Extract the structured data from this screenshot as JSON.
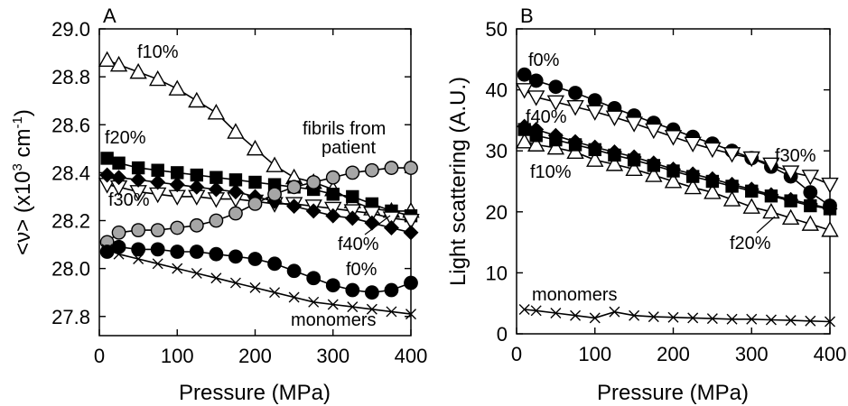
{
  "chart_data": [
    {
      "panel": "A",
      "type": "line",
      "xlabel": "Pressure (MPa)",
      "ylabel_parts": {
        "pre": "<ν> (x10",
        "sup1": "3",
        "mid": " cm",
        "sup2": "-1",
        "post": ")"
      },
      "xlim": [
        0,
        400
      ],
      "ylim": [
        27.72,
        29.0
      ],
      "xticks": [
        0,
        100,
        200,
        300,
        400
      ],
      "yticks": [
        27.8,
        28.0,
        28.2,
        28.4,
        28.6,
        28.8,
        29.0
      ],
      "ytick_labels": [
        "27.8",
        "28.0",
        "28.2",
        "28.4",
        "28.6",
        "28.8",
        "29.0"
      ],
      "grid": false,
      "series": [
        {
          "name": "f10%",
          "marker": "triangle-up",
          "fill": "#ffffff",
          "x": [
            10,
            25,
            50,
            75,
            100,
            125,
            150,
            175,
            200,
            225,
            250,
            275,
            300,
            325,
            350,
            375,
            400
          ],
          "y": [
            28.87,
            28.85,
            28.82,
            28.79,
            28.75,
            28.7,
            28.65,
            28.57,
            28.5,
            28.43,
            28.38,
            28.36,
            28.33,
            28.28,
            28.25,
            28.24,
            28.24
          ]
        },
        {
          "name": "f20%",
          "marker": "square",
          "fill": "#000000",
          "x": [
            10,
            25,
            50,
            75,
            100,
            125,
            150,
            175,
            200,
            225,
            250,
            275,
            300,
            325,
            350,
            375,
            400
          ],
          "y": [
            28.46,
            28.44,
            28.42,
            28.41,
            28.4,
            28.39,
            28.38,
            28.37,
            28.36,
            28.35,
            28.34,
            28.33,
            28.31,
            28.3,
            28.27,
            28.24,
            28.22
          ]
        },
        {
          "name": "f30%",
          "marker": "triangle-down",
          "fill": "#ffffff",
          "x": [
            10,
            25,
            50,
            75,
            100,
            125,
            150,
            175,
            200,
            225,
            250,
            275,
            300,
            325,
            350,
            375,
            400
          ],
          "y": [
            28.35,
            28.34,
            28.32,
            28.31,
            28.3,
            28.3,
            28.29,
            28.29,
            28.28,
            28.27,
            28.27,
            28.26,
            28.25,
            28.24,
            28.23,
            28.21,
            28.2
          ]
        },
        {
          "name": "f40%",
          "marker": "diamond",
          "fill": "#000000",
          "x": [
            10,
            25,
            50,
            75,
            100,
            125,
            150,
            175,
            200,
            225,
            250,
            275,
            300,
            325,
            350,
            375,
            400
          ],
          "y": [
            28.39,
            28.38,
            28.37,
            28.36,
            28.35,
            28.34,
            28.33,
            28.32,
            28.3,
            28.28,
            28.26,
            28.24,
            28.22,
            28.21,
            28.19,
            28.17,
            28.15
          ]
        },
        {
          "name": "fibrils from patient",
          "marker": "circle",
          "fill": "#a6a6a6",
          "x": [
            10,
            25,
            50,
            75,
            100,
            125,
            150,
            175,
            200,
            225,
            250,
            275,
            300,
            325,
            350,
            375,
            400
          ],
          "y": [
            28.11,
            28.15,
            28.16,
            28.16,
            28.17,
            28.18,
            28.2,
            28.23,
            28.27,
            28.31,
            28.34,
            28.36,
            28.38,
            28.4,
            28.41,
            28.42,
            28.42
          ]
        },
        {
          "name": "f0%",
          "marker": "circle",
          "fill": "#000000",
          "x": [
            10,
            25,
            50,
            75,
            100,
            125,
            150,
            175,
            200,
            225,
            250,
            275,
            300,
            325,
            350,
            375,
            400
          ],
          "y": [
            28.07,
            28.09,
            28.08,
            28.08,
            28.07,
            28.07,
            28.06,
            28.05,
            28.04,
            28.02,
            27.99,
            27.96,
            27.93,
            27.91,
            27.9,
            27.91,
            27.94
          ]
        },
        {
          "name": "monomers",
          "marker": "cross",
          "fill": "none",
          "x": [
            10,
            25,
            50,
            75,
            100,
            125,
            150,
            175,
            200,
            225,
            250,
            275,
            300,
            325,
            350,
            375,
            400
          ],
          "y": [
            28.08,
            28.06,
            28.04,
            28.02,
            28.0,
            27.98,
            27.96,
            27.94,
            27.92,
            27.9,
            27.88,
            27.86,
            27.85,
            27.84,
            27.83,
            27.82,
            27.81
          ]
        }
      ]
    },
    {
      "panel": "B",
      "type": "line",
      "xlabel": "Pressure (MPa)",
      "ylabel": "Light scattering (A.U.)",
      "xlim": [
        0,
        400
      ],
      "ylim": [
        0,
        50
      ],
      "xticks": [
        0,
        100,
        200,
        300,
        400
      ],
      "yticks": [
        0,
        10,
        20,
        30,
        40,
        50
      ],
      "grid": false,
      "series": [
        {
          "name": "f0%",
          "marker": "circle",
          "fill": "#000000",
          "x": [
            10,
            25,
            50,
            75,
            100,
            125,
            150,
            175,
            200,
            225,
            250,
            275,
            300,
            325,
            350,
            375,
            400
          ],
          "y": [
            42.5,
            41.5,
            40.5,
            39.5,
            38.3,
            37.0,
            35.8,
            34.6,
            33.5,
            32.3,
            31.2,
            30.0,
            28.8,
            27.4,
            25.8,
            23.2,
            21.0
          ]
        },
        {
          "name": "f30%",
          "marker": "triangle-down",
          "fill": "#ffffff",
          "x": [
            10,
            25,
            50,
            75,
            100,
            125,
            150,
            175,
            200,
            225,
            250,
            275,
            300,
            325,
            350,
            375,
            400
          ],
          "y": [
            40.0,
            38.8,
            38.0,
            37.2,
            36.4,
            35.5,
            34.5,
            33.4,
            32.3,
            31.2,
            30.3,
            29.5,
            28.8,
            27.8,
            26.5,
            25.8,
            24.5
          ]
        },
        {
          "name": "f40%",
          "marker": "diamond",
          "fill": "#000000",
          "x": [
            10,
            25,
            50,
            75,
            100,
            125,
            150,
            175,
            200,
            225,
            250,
            275,
            300,
            325,
            350,
            375,
            400
          ],
          "y": [
            34.0,
            33.5,
            32.5,
            31.5,
            30.6,
            29.8,
            29.0,
            28.0,
            27.0,
            26.2,
            25.4,
            24.5,
            23.7,
            22.8,
            22.0,
            21.3,
            20.5
          ]
        },
        {
          "name": "f10%",
          "marker": "triangle-up",
          "fill": "#ffffff",
          "x": [
            10,
            25,
            50,
            75,
            100,
            125,
            150,
            175,
            200,
            225,
            250,
            275,
            300,
            325,
            350,
            375,
            400
          ],
          "y": [
            31.5,
            31.0,
            30.5,
            29.8,
            28.5,
            27.8,
            27.0,
            26.0,
            25.0,
            24.0,
            23.2,
            22.0,
            20.8,
            20.0,
            19.0,
            18.0,
            17.0
          ]
        },
        {
          "name": "f20%",
          "marker": "square",
          "fill": "#000000",
          "x": [
            10,
            25,
            50,
            75,
            100,
            125,
            150,
            175,
            200,
            225,
            250,
            275,
            300,
            325,
            350,
            375,
            400
          ],
          "y": [
            33.5,
            32.5,
            31.8,
            31.0,
            30.2,
            29.3,
            28.5,
            27.6,
            26.7,
            25.8,
            25.0,
            24.2,
            23.4,
            22.6,
            21.8,
            21.0,
            20.5
          ]
        },
        {
          "name": "monomers",
          "marker": "cross",
          "fill": "none",
          "x": [
            10,
            25,
            50,
            75,
            100,
            125,
            150,
            175,
            200,
            225,
            250,
            275,
            300,
            325,
            350,
            375,
            400
          ],
          "y": [
            4.0,
            3.8,
            3.4,
            3.0,
            2.6,
            3.6,
            3.0,
            2.8,
            2.7,
            2.6,
            2.5,
            2.4,
            2.4,
            2.3,
            2.2,
            2.1,
            2.0
          ]
        }
      ]
    }
  ],
  "labels": {
    "panel_a": "A",
    "panel_b": "B",
    "a_f10": "f10%",
    "a_f20": "f20%",
    "a_f30": "f30%",
    "a_f40": "f40%",
    "a_f0": "f0%",
    "a_fibrils_1": "fibrils from",
    "a_fibrils_2": "patient",
    "a_monomers": "monomers",
    "b_f0": "f0%",
    "b_f40": "f40%",
    "b_f10": "f10%",
    "b_f30": "f30%",
    "b_f20": "f20%",
    "b_monomers": "monomers"
  }
}
